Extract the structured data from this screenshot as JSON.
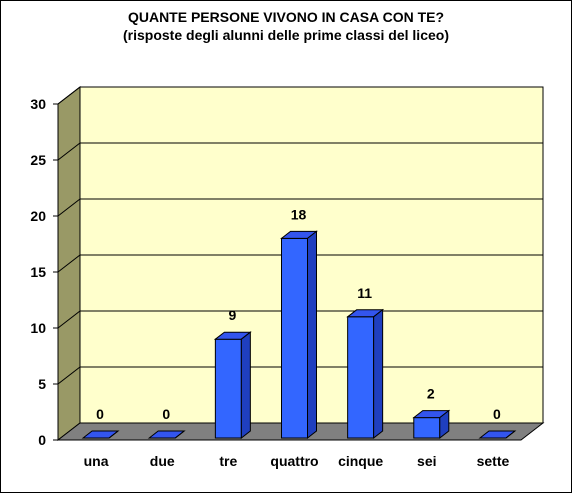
{
  "chart_data": {
    "type": "bar",
    "title": "QUANTE PERSONE VIVONO IN CASA CON TE?",
    "subtitle": "(risposte degli alunni delle prime classi del liceo)",
    "categories": [
      "una",
      "due",
      "tre",
      "quattro",
      "cinque",
      "sei",
      "sette"
    ],
    "values": [
      0,
      0,
      9,
      18,
      11,
      2,
      0
    ],
    "ylim": [
      0,
      30
    ],
    "yticks": [
      0,
      5,
      10,
      15,
      20,
      25,
      30
    ],
    "grid": true,
    "legend": "none",
    "bar_color": "#3366ff",
    "wall_color": "#ffffcc",
    "floor_color": "#808080"
  }
}
